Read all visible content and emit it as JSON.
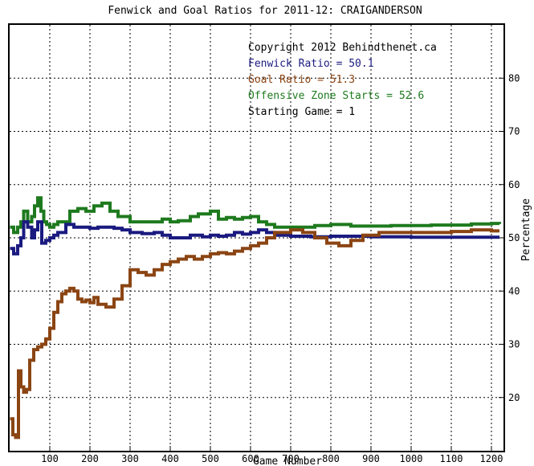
{
  "chart_data": {
    "type": "line",
    "title": "Fenwick and Goal Ratios for 2011-12: CRAIGANDERSON",
    "xlabel": "Game Number",
    "ylabel": "Percentage",
    "xlim": [
      0,
      1230
    ],
    "ylim": [
      10,
      90
    ],
    "x_ticks": [
      100,
      200,
      300,
      400,
      500,
      600,
      700,
      800,
      900,
      1000,
      1100,
      1200
    ],
    "y_ticks": [
      20,
      30,
      40,
      50,
      60,
      70,
      80
    ],
    "grid": true,
    "annotations": [
      {
        "text": "Copyright 2012 Behindthenet.ca",
        "color": "#000000"
      },
      {
        "text": "Fenwick Ratio = 50.1",
        "color": "#1a1a80"
      },
      {
        "text": "Goal Ratio = 51.3",
        "color": "#8b4513"
      },
      {
        "text": "Offensive Zone Starts = 52.6",
        "color": "#1e7a1e"
      },
      {
        "text": "Starting Game = 1",
        "color": "#000000"
      }
    ],
    "series": [
      {
        "name": "Offensive Zone Starts",
        "color": "#1e7a1e",
        "x": [
          1,
          10,
          20,
          28,
          35,
          45,
          55,
          62,
          70,
          78,
          85,
          92,
          100,
          110,
          120,
          150,
          170,
          190,
          210,
          230,
          250,
          270,
          300,
          350,
          380,
          400,
          420,
          450,
          470,
          500,
          520,
          540,
          560,
          580,
          600,
          620,
          640,
          660,
          700,
          730,
          760,
          800,
          850,
          900,
          950,
          1000,
          1050,
          1100,
          1150,
          1200,
          1220
        ],
        "y": [
          52,
          51,
          52,
          53,
          55,
          53,
          54,
          56,
          57.5,
          55,
          53,
          52.5,
          52,
          52.5,
          53,
          55,
          55.5,
          55,
          56,
          56.5,
          55,
          54,
          53,
          53,
          53.5,
          53,
          53.2,
          54,
          54.5,
          55,
          53.5,
          53.8,
          53.5,
          53.8,
          54,
          53,
          52.5,
          52,
          52,
          52,
          52.3,
          52.5,
          52.2,
          52.2,
          52.3,
          52.3,
          52.4,
          52.4,
          52.6,
          52.7,
          52.6
        ]
      },
      {
        "name": "Fenwick Ratio",
        "color": "#1a1a80",
        "x": [
          1,
          10,
          20,
          28,
          35,
          45,
          55,
          62,
          70,
          80,
          90,
          100,
          110,
          120,
          140,
          160,
          180,
          200,
          220,
          240,
          260,
          280,
          300,
          330,
          360,
          380,
          400,
          420,
          450,
          480,
          500,
          520,
          540,
          560,
          580,
          600,
          620,
          640,
          660,
          700,
          750,
          800,
          850,
          900,
          950,
          1000,
          1050,
          1100,
          1150,
          1200,
          1220
        ],
        "y": [
          48,
          47,
          48.5,
          50,
          53,
          52,
          50,
          51.5,
          53,
          49,
          49.5,
          50,
          50.5,
          51,
          52.5,
          52,
          52,
          51.8,
          52,
          52,
          51.8,
          51.5,
          51,
          50.8,
          51,
          50.5,
          50,
          50,
          50.5,
          50.2,
          50.5,
          50.3,
          50.5,
          51,
          50.7,
          51,
          51.5,
          51,
          50.5,
          50.3,
          50.2,
          50.3,
          50.3,
          50.2,
          50.2,
          50.1,
          50.1,
          50.1,
          50.1,
          50.1,
          50.1
        ]
      },
      {
        "name": "Goal Ratio",
        "color": "#8b4513",
        "x": [
          1,
          8,
          15,
          22,
          28,
          35,
          42,
          50,
          60,
          70,
          80,
          90,
          100,
          110,
          120,
          130,
          140,
          150,
          160,
          170,
          180,
          190,
          200,
          210,
          220,
          240,
          260,
          280,
          300,
          320,
          340,
          360,
          380,
          400,
          420,
          440,
          460,
          480,
          500,
          520,
          540,
          560,
          580,
          600,
          620,
          640,
          660,
          700,
          730,
          760,
          790,
          820,
          850,
          880,
          920,
          1000,
          1100,
          1150,
          1200,
          1220
        ],
        "y": [
          16,
          13,
          12.5,
          25,
          22,
          21,
          21.5,
          27,
          29,
          29.5,
          30,
          31,
          33,
          36,
          38,
          39.5,
          40,
          40.5,
          40,
          38.5,
          38,
          38.3,
          37.8,
          38.8,
          37.5,
          37,
          38.5,
          41,
          44,
          43.5,
          43,
          44,
          45,
          45.5,
          46,
          46.5,
          46,
          46.5,
          47,
          47.2,
          47,
          47.5,
          48,
          48.5,
          49,
          50,
          51,
          51.5,
          51,
          50,
          49,
          48.5,
          49.5,
          50.5,
          51,
          51,
          51.2,
          51.5,
          51.3,
          51.3
        ]
      }
    ]
  }
}
